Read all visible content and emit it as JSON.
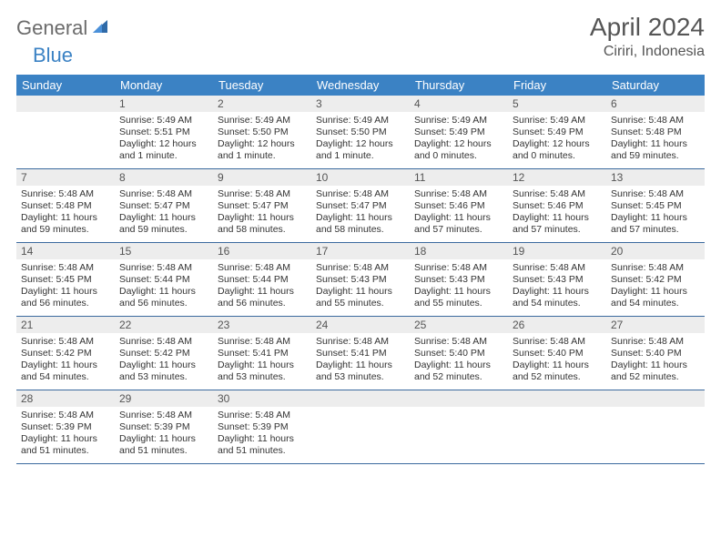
{
  "brand": {
    "part1": "General",
    "part2": "Blue"
  },
  "title": "April 2024",
  "location": "Ciriri, Indonesia",
  "colors": {
    "header_bg": "#3b82c4",
    "header_text": "#ffffff",
    "daynum_bg": "#ededed",
    "text": "#333333",
    "border": "#3b6a9e",
    "logo_gray": "#6b6b6b",
    "logo_blue": "#3b82c4"
  },
  "day_labels": [
    "Sunday",
    "Monday",
    "Tuesday",
    "Wednesday",
    "Thursday",
    "Friday",
    "Saturday"
  ],
  "weeks": [
    [
      {
        "n": "",
        "sr": "",
        "ss": "",
        "dl": ""
      },
      {
        "n": "1",
        "sr": "5:49 AM",
        "ss": "5:51 PM",
        "dl": "12 hours and 1 minute."
      },
      {
        "n": "2",
        "sr": "5:49 AM",
        "ss": "5:50 PM",
        "dl": "12 hours and 1 minute."
      },
      {
        "n": "3",
        "sr": "5:49 AM",
        "ss": "5:50 PM",
        "dl": "12 hours and 1 minute."
      },
      {
        "n": "4",
        "sr": "5:49 AM",
        "ss": "5:49 PM",
        "dl": "12 hours and 0 minutes."
      },
      {
        "n": "5",
        "sr": "5:49 AM",
        "ss": "5:49 PM",
        "dl": "12 hours and 0 minutes."
      },
      {
        "n": "6",
        "sr": "5:48 AM",
        "ss": "5:48 PM",
        "dl": "11 hours and 59 minutes."
      }
    ],
    [
      {
        "n": "7",
        "sr": "5:48 AM",
        "ss": "5:48 PM",
        "dl": "11 hours and 59 minutes."
      },
      {
        "n": "8",
        "sr": "5:48 AM",
        "ss": "5:47 PM",
        "dl": "11 hours and 59 minutes."
      },
      {
        "n": "9",
        "sr": "5:48 AM",
        "ss": "5:47 PM",
        "dl": "11 hours and 58 minutes."
      },
      {
        "n": "10",
        "sr": "5:48 AM",
        "ss": "5:47 PM",
        "dl": "11 hours and 58 minutes."
      },
      {
        "n": "11",
        "sr": "5:48 AM",
        "ss": "5:46 PM",
        "dl": "11 hours and 57 minutes."
      },
      {
        "n": "12",
        "sr": "5:48 AM",
        "ss": "5:46 PM",
        "dl": "11 hours and 57 minutes."
      },
      {
        "n": "13",
        "sr": "5:48 AM",
        "ss": "5:45 PM",
        "dl": "11 hours and 57 minutes."
      }
    ],
    [
      {
        "n": "14",
        "sr": "5:48 AM",
        "ss": "5:45 PM",
        "dl": "11 hours and 56 minutes."
      },
      {
        "n": "15",
        "sr": "5:48 AM",
        "ss": "5:44 PM",
        "dl": "11 hours and 56 minutes."
      },
      {
        "n": "16",
        "sr": "5:48 AM",
        "ss": "5:44 PM",
        "dl": "11 hours and 56 minutes."
      },
      {
        "n": "17",
        "sr": "5:48 AM",
        "ss": "5:43 PM",
        "dl": "11 hours and 55 minutes."
      },
      {
        "n": "18",
        "sr": "5:48 AM",
        "ss": "5:43 PM",
        "dl": "11 hours and 55 minutes."
      },
      {
        "n": "19",
        "sr": "5:48 AM",
        "ss": "5:43 PM",
        "dl": "11 hours and 54 minutes."
      },
      {
        "n": "20",
        "sr": "5:48 AM",
        "ss": "5:42 PM",
        "dl": "11 hours and 54 minutes."
      }
    ],
    [
      {
        "n": "21",
        "sr": "5:48 AM",
        "ss": "5:42 PM",
        "dl": "11 hours and 54 minutes."
      },
      {
        "n": "22",
        "sr": "5:48 AM",
        "ss": "5:42 PM",
        "dl": "11 hours and 53 minutes."
      },
      {
        "n": "23",
        "sr": "5:48 AM",
        "ss": "5:41 PM",
        "dl": "11 hours and 53 minutes."
      },
      {
        "n": "24",
        "sr": "5:48 AM",
        "ss": "5:41 PM",
        "dl": "11 hours and 53 minutes."
      },
      {
        "n": "25",
        "sr": "5:48 AM",
        "ss": "5:40 PM",
        "dl": "11 hours and 52 minutes."
      },
      {
        "n": "26",
        "sr": "5:48 AM",
        "ss": "5:40 PM",
        "dl": "11 hours and 52 minutes."
      },
      {
        "n": "27",
        "sr": "5:48 AM",
        "ss": "5:40 PM",
        "dl": "11 hours and 52 minutes."
      }
    ],
    [
      {
        "n": "28",
        "sr": "5:48 AM",
        "ss": "5:39 PM",
        "dl": "11 hours and 51 minutes."
      },
      {
        "n": "29",
        "sr": "5:48 AM",
        "ss": "5:39 PM",
        "dl": "11 hours and 51 minutes."
      },
      {
        "n": "30",
        "sr": "5:48 AM",
        "ss": "5:39 PM",
        "dl": "11 hours and 51 minutes."
      },
      {
        "n": "",
        "sr": "",
        "ss": "",
        "dl": ""
      },
      {
        "n": "",
        "sr": "",
        "ss": "",
        "dl": ""
      },
      {
        "n": "",
        "sr": "",
        "ss": "",
        "dl": ""
      },
      {
        "n": "",
        "sr": "",
        "ss": "",
        "dl": ""
      }
    ]
  ],
  "labels": {
    "sunrise": "Sunrise:",
    "sunset": "Sunset:",
    "daylight": "Daylight:"
  }
}
